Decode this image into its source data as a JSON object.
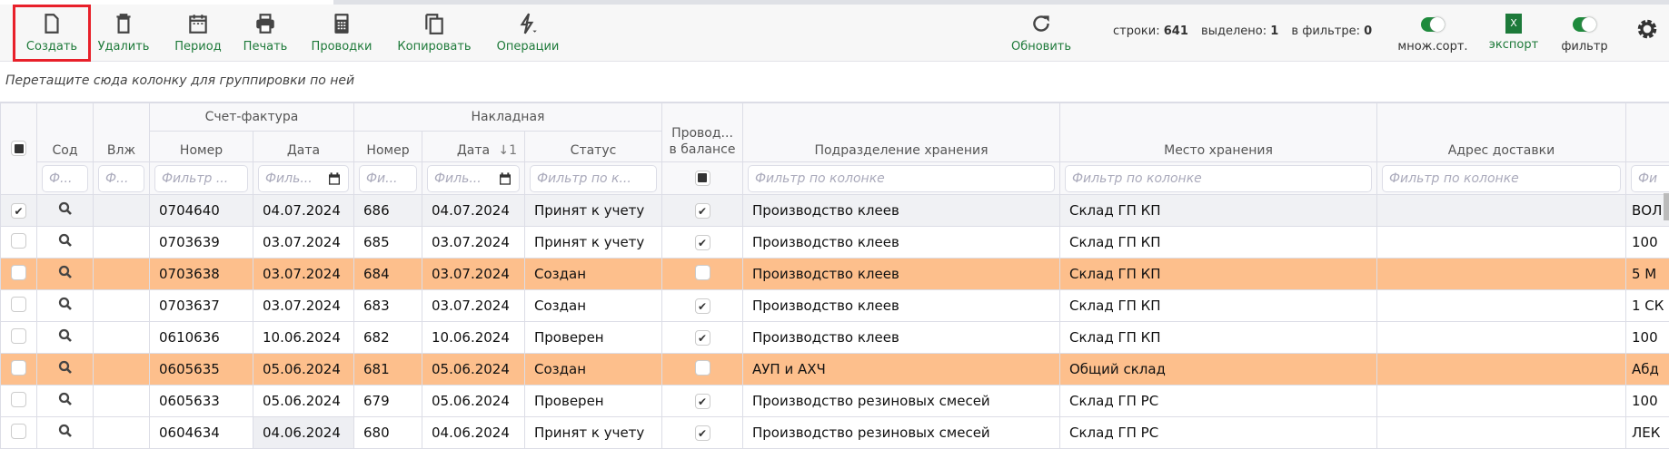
{
  "toolbar": {
    "buttons": [
      {
        "label": "Создать",
        "icon": "file-icon"
      },
      {
        "label": "Удалить",
        "icon": "trash-icon"
      },
      {
        "label": "Период",
        "icon": "calendar-icon"
      },
      {
        "label": "Печать",
        "icon": "printer-icon"
      },
      {
        "label": "Проводки",
        "icon": "calculator-icon"
      },
      {
        "label": "Копировать",
        "icon": "copy-icon"
      },
      {
        "label": "Операции",
        "icon": "lightning-icon"
      }
    ],
    "refresh": "Обновить",
    "stats": {
      "rows_label": "строки:",
      "rows": "641",
      "selected_label": "выделено:",
      "selected": "1",
      "filtered_label": "в фильтре:",
      "filtered": "0"
    },
    "multisort": "множ.сорт.",
    "export": "экспорт",
    "export_icon_text": "X",
    "filter": "фильтр",
    "accent": "#1e7a3a"
  },
  "group_hint": "Перетащите сюда колонку для группировки по ней",
  "headers": {
    "sf": "Счет-фактура",
    "nak": "Накладная",
    "sod": "Сод",
    "vlzh": "Влж",
    "sf_num": "Номер",
    "sf_date": "Дата",
    "n_num": "Номер",
    "n_date": "Дата",
    "sort": "↓1",
    "status": "Статус",
    "prov": "Провод...",
    "prov2": "в балансе",
    "podr": "Подразделение хранения",
    "mesto": "Место хранения",
    "adres": "Адрес доставки"
  },
  "filters": {
    "sod": "Ф...",
    "vlzh": "Ф...",
    "sf_num": "Фильтр ...",
    "sf_date": "Филь...",
    "n_num": "Фи...",
    "n_date": "Филь...",
    "status": "Фильтр по к...",
    "podr": "Фильтр по колонке",
    "mesto": "Фильтр по колонке",
    "adres": "Фильтр по колонке",
    "last": "Фи"
  },
  "rows": [
    {
      "sf_num": "0704640",
      "sf_date": "04.07.2024",
      "n_num": "686",
      "n_date": "04.07.2024",
      "status": "Принят к учету",
      "prov": true,
      "podr": "Производство клеев",
      "mesto": "Склад ГП КП",
      "adres": "",
      "last": "ВОЛ",
      "checked": true,
      "style": "active"
    },
    {
      "sf_num": "0703639",
      "sf_date": "03.07.2024",
      "n_num": "685",
      "n_date": "03.07.2024",
      "status": "Принят к учету",
      "prov": true,
      "podr": "Производство клеев",
      "mesto": "Склад ГП КП",
      "adres": "",
      "last": "100",
      "checked": false,
      "style": ""
    },
    {
      "sf_num": "0703638",
      "sf_date": "03.07.2024",
      "n_num": "684",
      "n_date": "03.07.2024",
      "status": "Создан",
      "prov": false,
      "podr": "Производство клеев",
      "mesto": "Склад ГП КП",
      "adres": "",
      "last": "5 М",
      "checked": false,
      "style": "orange"
    },
    {
      "sf_num": "0703637",
      "sf_date": "03.07.2024",
      "n_num": "683",
      "n_date": "03.07.2024",
      "status": "Создан",
      "prov": true,
      "podr": "Производство клеев",
      "mesto": "Склад ГП КП",
      "adres": "",
      "last": "1 СК",
      "checked": false,
      "style": ""
    },
    {
      "sf_num": "0610636",
      "sf_date": "10.06.2024",
      "n_num": "682",
      "n_date": "10.06.2024",
      "status": "Проверен",
      "prov": true,
      "podr": "Производство клеев",
      "mesto": "Склад ГП КП",
      "adres": "",
      "last": "100",
      "checked": false,
      "style": ""
    },
    {
      "sf_num": "0605635",
      "sf_date": "05.06.2024",
      "n_num": "681",
      "n_date": "05.06.2024",
      "status": "Создан",
      "prov": false,
      "podr": "АУП и АХЧ",
      "mesto": "Общий склад",
      "adres": "",
      "last": "Абд",
      "checked": false,
      "style": "orange"
    },
    {
      "sf_num": "0605633",
      "sf_date": "05.06.2024",
      "n_num": "679",
      "n_date": "05.06.2024",
      "status": "Проверен",
      "prov": true,
      "podr": "Производство резиновых смесей",
      "mesto": "Склад ГП РС",
      "adres": "",
      "last": "100",
      "checked": false,
      "style": ""
    },
    {
      "sf_num": "0604634",
      "sf_date": "04.06.2024",
      "n_num": "680",
      "n_date": "04.06.2024",
      "status": "Принят к учету",
      "prov": true,
      "podr": "Производство резиновых смесей",
      "mesto": "Склад ГП РС",
      "adres": "",
      "last": "ЛЕК",
      "checked": false,
      "style": ""
    }
  ],
  "colors": {
    "highlight_row": "#fdbf8c",
    "selected_row": "#f0f1f4",
    "create_outline": "#e8202a"
  }
}
